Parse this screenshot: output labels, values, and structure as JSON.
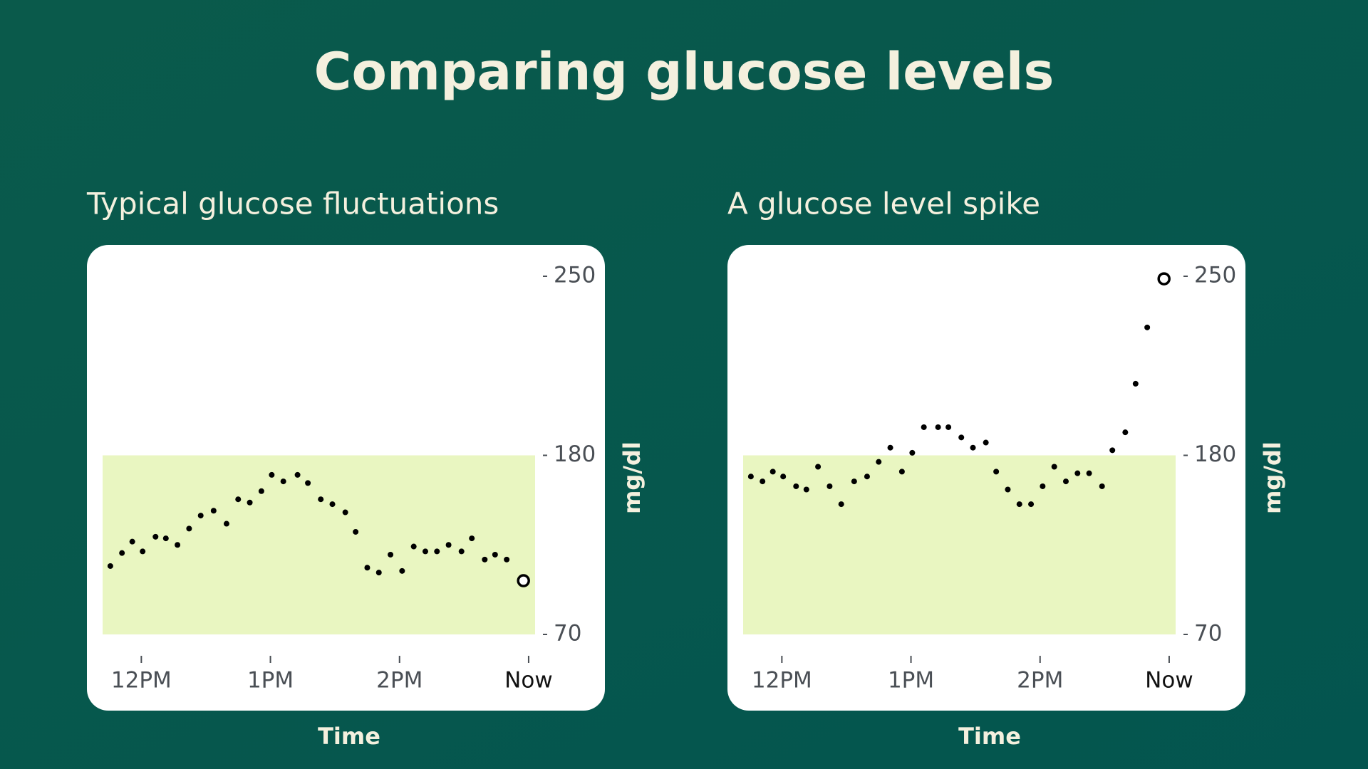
{
  "title": "Comparing glucose levels",
  "chart_data": [
    {
      "type": "scatter",
      "title": "Typical glucose fluctuations",
      "xlabel": "Time",
      "ylabel": "mg/dl",
      "x": [
        11.76,
        11.85,
        11.93,
        12.01,
        12.11,
        12.19,
        12.28,
        12.37,
        12.46,
        12.56,
        12.66,
        12.75,
        12.84,
        12.93,
        13.01,
        13.1,
        13.21,
        13.29,
        13.39,
        13.48,
        13.58,
        13.66,
        13.75,
        13.84,
        13.93,
        14.02,
        14.11,
        14.2,
        14.29,
        14.38,
        14.48,
        14.56,
        14.66,
        14.74,
        14.83,
        14.96
      ],
      "values": [
        112,
        120,
        127,
        121,
        130,
        129,
        125,
        135,
        143,
        146,
        138,
        153,
        151,
        158,
        168,
        164,
        168,
        163,
        153,
        150,
        145,
        133,
        111,
        108,
        119,
        109,
        124,
        121,
        121,
        125,
        121,
        129,
        116,
        119,
        116,
        103
      ],
      "color": "#000000",
      "xlim": [
        11.7,
        15.05
      ],
      "xticks": [
        {
          "value": 12,
          "label": "12PM"
        },
        {
          "value": 13,
          "label": "1PM"
        },
        {
          "value": 14,
          "label": "2PM"
        },
        {
          "value": 15,
          "label": "Now"
        }
      ],
      "ylim": [
        70,
        250
      ],
      "yticks": [
        70,
        180,
        250
      ],
      "band": {
        "range": [
          70,
          180
        ],
        "color": "#e9f6c1"
      }
    },
    {
      "type": "scatter",
      "title": "A glucose level spike",
      "xlabel": "Time",
      "ylabel": "mg/dl",
      "x": [
        11.76,
        11.85,
        11.93,
        12.01,
        12.11,
        12.19,
        12.28,
        12.37,
        12.46,
        12.56,
        12.66,
        12.75,
        12.84,
        12.93,
        13.01,
        13.1,
        13.21,
        13.29,
        13.39,
        13.48,
        13.58,
        13.66,
        13.75,
        13.84,
        13.93,
        14.02,
        14.11,
        14.2,
        14.29,
        14.38,
        14.48,
        14.56,
        14.66,
        14.74,
        14.83,
        14.96
      ],
      "values": [
        167,
        164,
        170,
        167,
        161,
        159,
        173,
        161,
        150,
        164,
        167,
        176,
        183,
        170,
        181,
        191,
        191,
        191,
        187,
        183,
        185,
        170,
        159,
        150,
        150,
        161,
        173,
        164,
        169,
        169,
        161,
        182,
        189,
        208,
        230,
        249
      ],
      "color": "#000000",
      "xlim": [
        11.7,
        15.05
      ],
      "xticks": [
        {
          "value": 12,
          "label": "12PM"
        },
        {
          "value": 13,
          "label": "1PM"
        },
        {
          "value": 14,
          "label": "2PM"
        },
        {
          "value": 15,
          "label": "Now"
        }
      ],
      "ylim": [
        70,
        250
      ],
      "yticks": [
        70,
        180,
        250
      ],
      "band": {
        "range": [
          70,
          180
        ],
        "color": "#e9f6c1"
      }
    }
  ]
}
